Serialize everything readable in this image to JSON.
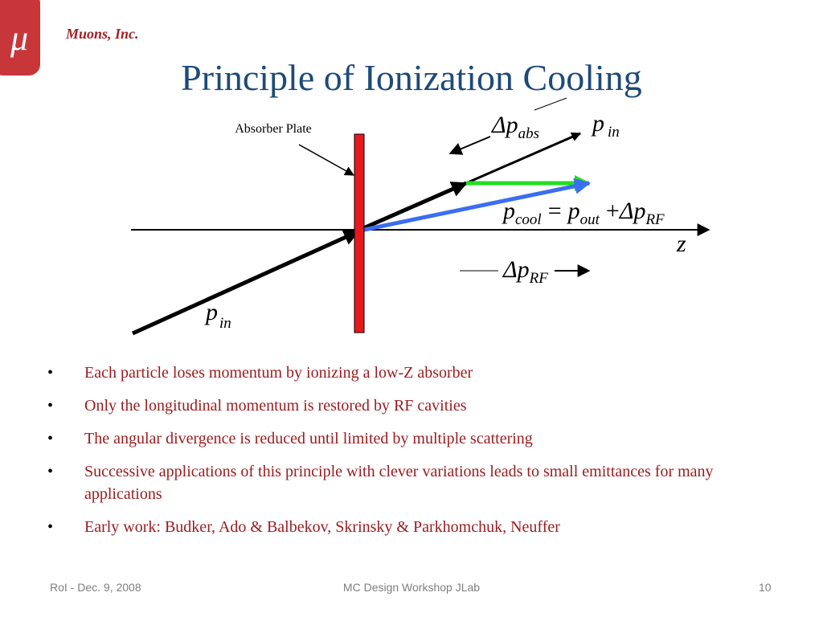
{
  "header": {
    "logo": "μ",
    "company": "Muons, Inc.",
    "title": "Principle of Ionization Cooling"
  },
  "diagram": {
    "absorber_label": "Absorber Plate",
    "dp_abs": {
      "base": "Δp",
      "sub": "abs"
    },
    "p_in_top": {
      "base": "p",
      "sub": "in"
    },
    "equation": {
      "lhs": {
        "base": "p",
        "sub": "cool"
      },
      "eq": "=",
      "p_out": {
        "base": "p",
        "sub": "out"
      },
      "plus": "+",
      "dp_rf": {
        "base": "Δp",
        "sub": "RF"
      }
    },
    "z": "z",
    "dp_rf": {
      "base": "Δp",
      "sub": "RF"
    },
    "p_in_bottom": {
      "base": "p",
      "sub": "in"
    }
  },
  "bullets": [
    "Each particle loses momentum by ionizing a low-Z absorber",
    "Only the longitudinal momentum is restored by RF cavities",
    "The angular divergence is reduced until limited by multiple scattering",
    "Successive applications of this principle with clever variations leads to small emittances for many applications",
    "Early work: Budker, Ado & Balbekov, Skrinsky & Parkhomchuk, Neuffer"
  ],
  "footer": {
    "left": "RoI - Dec. 9, 2008",
    "center": "MC Design Workshop JLab",
    "right": "10"
  }
}
